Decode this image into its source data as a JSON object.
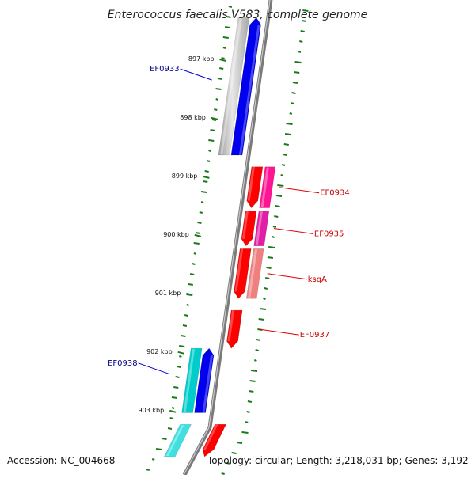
{
  "title": "Enterococcus faecalis V583, complete genome",
  "accession_text": "Accession: NC_004668",
  "topology_text": "Topology: circular; Length: 3,218,031 bp; Genes: 3,192",
  "ticks": [
    {
      "label": "897 kbp"
    },
    {
      "label": "898 kbp"
    },
    {
      "label": "899 kbp"
    },
    {
      "label": "900 kbp"
    },
    {
      "label": "901 kbp"
    },
    {
      "label": "902 kbp"
    },
    {
      "label": "903 kbp"
    }
  ],
  "genes": [
    {
      "id": "EF0933",
      "strand": "-",
      "color": "#0000ee",
      "label_color": "#00008b",
      "start_kbp": 896.3,
      "end_kbp": 898.65
    },
    {
      "id": "EF0934",
      "strand": "+",
      "color": "#ff0000",
      "label_color": "#cc0000",
      "start_kbp": 898.85,
      "end_kbp": 899.55
    },
    {
      "id": "EF0935",
      "strand": "+",
      "color": "#ff0000",
      "label_color": "#cc0000",
      "start_kbp": 899.6,
      "end_kbp": 900.2
    },
    {
      "id": "ksgA",
      "strand": "+",
      "color": "#ff0000",
      "label_color": "#cc0000",
      "start_kbp": 900.25,
      "end_kbp": 901.1
    },
    {
      "id": "EF0937",
      "strand": "+",
      "color": "#ff0000",
      "label_color": "#cc0000",
      "start_kbp": 901.3,
      "end_kbp": 901.95
    },
    {
      "id": "EF0938",
      "strand": "-",
      "color": "#0000ee",
      "label_color": "#00008b",
      "start_kbp": 901.95,
      "end_kbp": 903.05
    },
    {
      "id": "",
      "strand": "+",
      "color": "#ff0000",
      "label_color": "#cc0000",
      "start_kbp": 903.25,
      "end_kbp": 903.8
    }
  ],
  "cog_blocks": [
    {
      "color": "#c0c0c0",
      "start_kbp": 896.3,
      "end_kbp": 898.65
    },
    {
      "color": "#ff1493",
      "start_kbp": 898.85,
      "end_kbp": 899.55
    },
    {
      "color": "#e11ea5",
      "start_kbp": 899.6,
      "end_kbp": 900.2
    },
    {
      "color": "#f08080",
      "start_kbp": 900.25,
      "end_kbp": 901.1
    },
    {
      "color": "#00cccc",
      "start_kbp": 901.95,
      "end_kbp": 903.05
    },
    {
      "color": "#40e0e0",
      "start_kbp": 903.25,
      "end_kbp": 903.8
    }
  ],
  "colors": {
    "backbone": "#7a7a7a",
    "dots": "#1a7a1a",
    "minus_label_line": "#0000cc",
    "plus_label_line": "#dd0000"
  }
}
